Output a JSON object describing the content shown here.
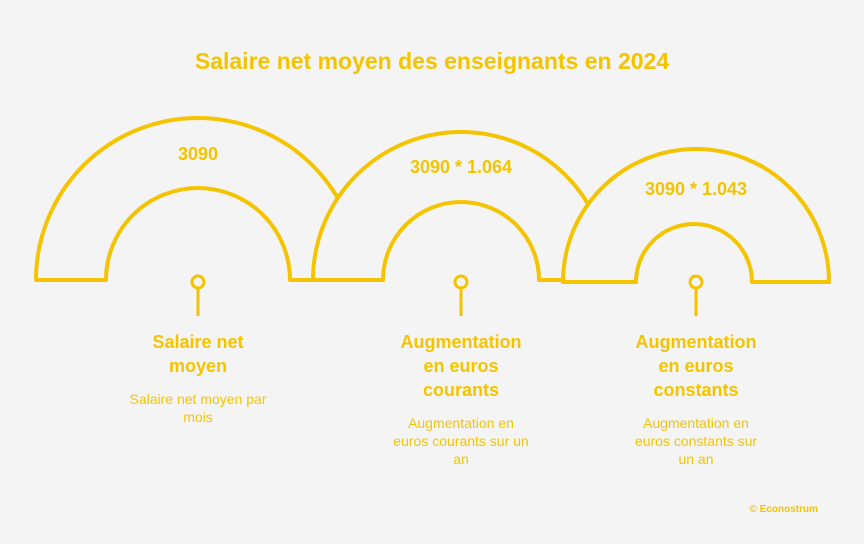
{
  "title": "Salaire net moyen des enseignants en 2024",
  "items": [
    {
      "value": "3090",
      "label": "Salaire net moyen",
      "description": "Salaire net moyen par mois"
    },
    {
      "value": "3090 * 1.064",
      "label": "Augmentation en euros courants",
      "description": "Augmentation en euros courants sur un an"
    },
    {
      "value": "3090 * 1.043",
      "label": "Augmentation en euros constants",
      "description": "Augmentation en euros constants sur un an"
    }
  ],
  "credit": "© Econostrum"
}
